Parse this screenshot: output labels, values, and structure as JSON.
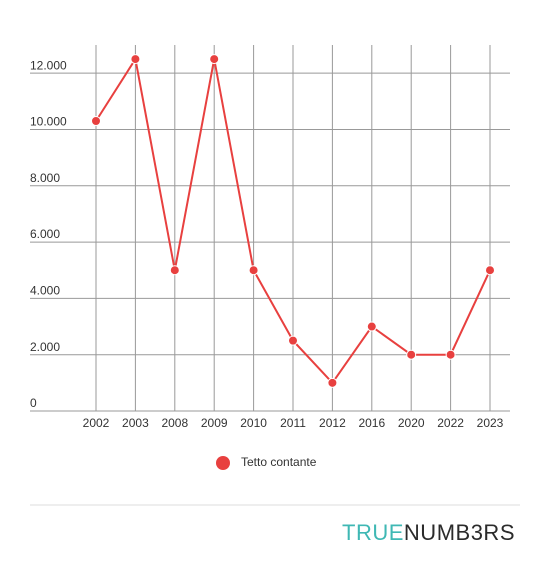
{
  "chart_data": {
    "type": "line",
    "categories": [
      "2002",
      "2003",
      "2008",
      "2009",
      "2010",
      "2011",
      "2012",
      "2016",
      "2020",
      "2022",
      "2023"
    ],
    "series": [
      {
        "name": "Tetto contante",
        "color": "#e8403f",
        "values": [
          10300,
          12500,
          5000,
          12500,
          5000,
          2500,
          1000,
          3000,
          2000,
          2000,
          5000
        ]
      }
    ],
    "ylim": [
      0,
      13000
    ],
    "yticks": [
      0,
      {
        "value": 2000,
        "label": "2.000"
      },
      {
        "value": 4000,
        "label": "4.000"
      },
      {
        "value": 6000,
        "label": "6.000"
      },
      {
        "value": 8000,
        "label": "8.000"
      },
      {
        "value": 10000,
        "label": "10.000"
      },
      {
        "value": 12000,
        "label": "12.000"
      }
    ],
    "grid": true,
    "legend": "bottom"
  },
  "brand": {
    "first": "TRUE",
    "second": "NUMB3RS"
  }
}
